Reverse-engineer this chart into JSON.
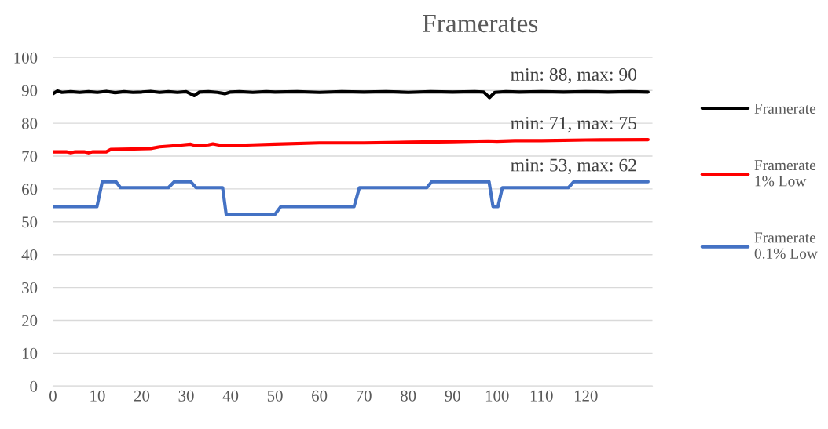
{
  "chart_data": {
    "type": "line",
    "title": "Framerates",
    "xlim": [
      0,
      135
    ],
    "xticks": [
      0,
      10,
      20,
      30,
      40,
      50,
      60,
      70,
      80,
      90,
      100,
      110,
      120
    ],
    "ylim": [
      0,
      100
    ],
    "yticks": [
      0,
      10,
      20,
      30,
      40,
      50,
      60,
      70,
      80,
      90,
      100
    ],
    "grid": "y",
    "legend": "right",
    "marker": "none",
    "line_style": "solid",
    "series": [
      {
        "name": "Framerate",
        "color": "#000000",
        "x": [
          0,
          1,
          2,
          4,
          6,
          8,
          10,
          12,
          14,
          16,
          18,
          20,
          22,
          24,
          26,
          28,
          30,
          31.8,
          33,
          35,
          37,
          38.7,
          40,
          42,
          45,
          48,
          50,
          55,
          60,
          65,
          70,
          75,
          80,
          85,
          90,
          95,
          97,
          98.3,
          99.5,
          102,
          105,
          110,
          115,
          120,
          125,
          130,
          134
        ],
        "values": [
          89,
          89.8,
          89.4,
          89.6,
          89.4,
          89.6,
          89.4,
          89.7,
          89.3,
          89.6,
          89.4,
          89.5,
          89.7,
          89.4,
          89.6,
          89.4,
          89.6,
          88.4,
          89.5,
          89.6,
          89.4,
          89,
          89.5,
          89.6,
          89.4,
          89.6,
          89.5,
          89.6,
          89.4,
          89.6,
          89.5,
          89.6,
          89.4,
          89.6,
          89.5,
          89.6,
          89.5,
          87.8,
          89.4,
          89.6,
          89.5,
          89.6,
          89.5,
          89.6,
          89.5,
          89.6,
          89.5
        ]
      },
      {
        "name": "Framerate 1% Low",
        "color": "#ff0000",
        "x": [
          0,
          3,
          4,
          5,
          7,
          8,
          9,
          12,
          13,
          20,
          22,
          24,
          27,
          31,
          32,
          35,
          36,
          38,
          40,
          45,
          50,
          60,
          70,
          80,
          90,
          98,
          100,
          104,
          110,
          120,
          134
        ],
        "values": [
          71.3,
          71.3,
          71,
          71.3,
          71.3,
          71,
          71.3,
          71.3,
          72,
          72.2,
          72.3,
          72.8,
          73.1,
          73.6,
          73.2,
          73.4,
          73.7,
          73.2,
          73.2,
          73.4,
          73.6,
          74,
          74,
          74.2,
          74.4,
          74.6,
          74.5,
          74.7,
          74.7,
          74.9,
          75
        ]
      },
      {
        "name": "Framerate 0.1% Low",
        "color": "#4472c4",
        "x": [
          0,
          9.9,
          11.1,
          14.2,
          15.2,
          26,
          27.3,
          31,
          32.2,
          38.2,
          39,
          50,
          51.3,
          67.8,
          69,
          84.2,
          85.3,
          98.2,
          99.1,
          100.2,
          101.2,
          116.1,
          117.3,
          134
        ],
        "values": [
          54.6,
          54.6,
          62.2,
          62.2,
          60.4,
          60.4,
          62.2,
          62.2,
          60.4,
          60.4,
          52.3,
          52.3,
          54.6,
          54.6,
          60.4,
          60.4,
          62.2,
          62.2,
          54.6,
          54.6,
          60.4,
          60.4,
          62.2,
          62.2
        ]
      }
    ],
    "annotations": [
      "min: 88, max: 90",
      "min: 71, max: 75",
      "min: 53, max: 62"
    ]
  }
}
